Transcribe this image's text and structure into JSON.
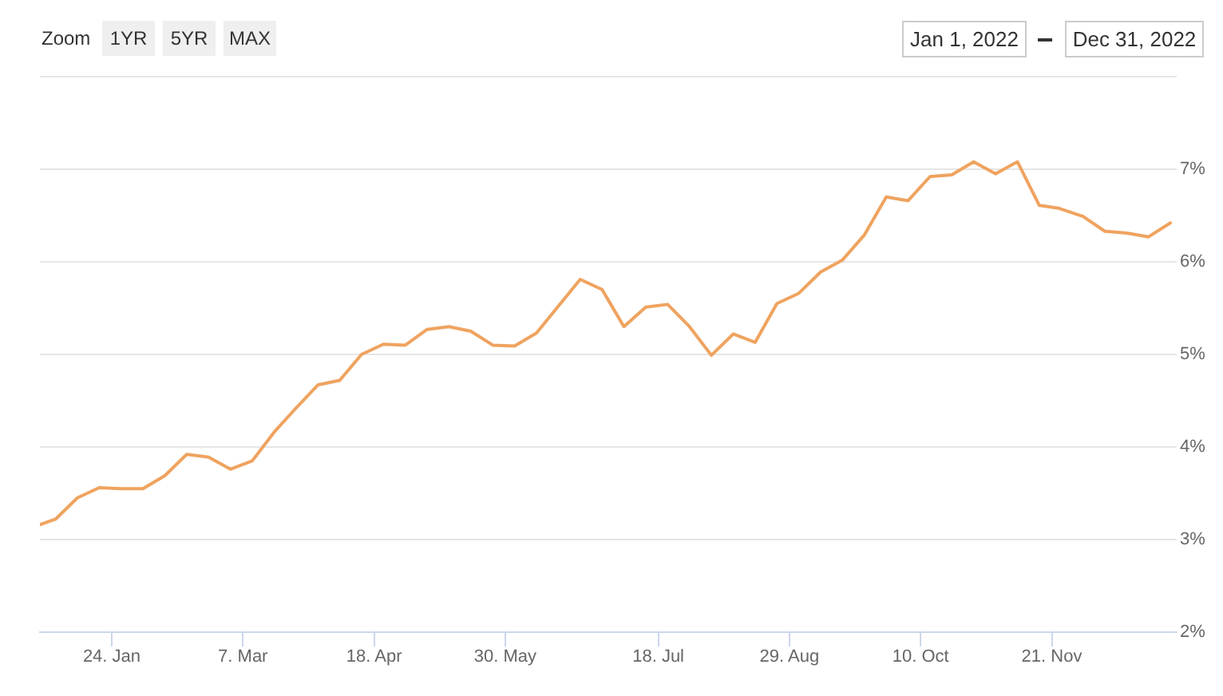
{
  "chart_data": {
    "type": "line",
    "x": [
      "2022-01-01",
      "2022-01-06",
      "2022-01-13",
      "2022-01-20",
      "2022-01-27",
      "2022-02-03",
      "2022-02-10",
      "2022-02-17",
      "2022-02-24",
      "2022-03-03",
      "2022-03-10",
      "2022-03-17",
      "2022-03-24",
      "2022-03-31",
      "2022-04-07",
      "2022-04-14",
      "2022-04-21",
      "2022-04-28",
      "2022-05-05",
      "2022-05-12",
      "2022-05-19",
      "2022-05-26",
      "2022-06-02",
      "2022-06-09",
      "2022-06-23",
      "2022-06-30",
      "2022-07-07",
      "2022-07-14",
      "2022-07-21",
      "2022-07-28",
      "2022-08-04",
      "2022-08-11",
      "2022-08-18",
      "2022-08-25",
      "2022-09-01",
      "2022-09-08",
      "2022-09-15",
      "2022-09-22",
      "2022-09-29",
      "2022-10-06",
      "2022-10-13",
      "2022-10-20",
      "2022-10-27",
      "2022-11-03",
      "2022-11-10",
      "2022-11-17",
      "2022-11-23",
      "2022-12-01",
      "2022-12-08",
      "2022-12-15",
      "2022-12-22",
      "2022-12-29"
    ],
    "values": [
      3.16,
      3.22,
      3.45,
      3.56,
      3.55,
      3.55,
      3.69,
      3.92,
      3.89,
      3.76,
      3.85,
      4.16,
      4.42,
      4.67,
      4.72,
      5.0,
      5.11,
      5.1,
      5.27,
      5.3,
      5.25,
      5.1,
      5.09,
      5.23,
      5.81,
      5.7,
      5.3,
      5.51,
      5.54,
      5.3,
      4.99,
      5.22,
      5.13,
      5.55,
      5.66,
      5.89,
      6.02,
      6.29,
      6.7,
      6.66,
      6.92,
      6.94,
      7.08,
      6.95,
      7.08,
      6.61,
      6.58,
      6.49,
      6.33,
      6.31,
      6.27,
      6.42
    ],
    "color": "#efa35f",
    "xlim": [
      "2022-01-01",
      "2022-12-31"
    ],
    "xticks": [
      {
        "value": "2022-01-24",
        "label": "24. Jan"
      },
      {
        "value": "2022-03-07",
        "label": "7. Mar"
      },
      {
        "value": "2022-04-18",
        "label": "18. Apr"
      },
      {
        "value": "2022-05-30",
        "label": "30. May"
      },
      {
        "value": "2022-07-18",
        "label": "18. Jul"
      },
      {
        "value": "2022-08-29",
        "label": "29. Aug"
      },
      {
        "value": "2022-10-10",
        "label": "10. Oct"
      },
      {
        "value": "2022-11-21",
        "label": "21. Nov"
      }
    ],
    "ylim": [
      2,
      8
    ],
    "yticks": [
      {
        "value": 2,
        "label": "2%"
      },
      {
        "value": 3,
        "label": "3%"
      },
      {
        "value": 4,
        "label": "4%"
      },
      {
        "value": 5,
        "label": "5%"
      },
      {
        "value": 6,
        "label": "6%"
      },
      {
        "value": 7,
        "label": "7%"
      },
      {
        "value": 8,
        "label": null
      }
    ],
    "grid": "y",
    "annotations": [
      "Zoom",
      "1YR",
      "5YR",
      "MAX",
      "Jan 1, 2022",
      "Dec 31, 2022"
    ]
  }
}
